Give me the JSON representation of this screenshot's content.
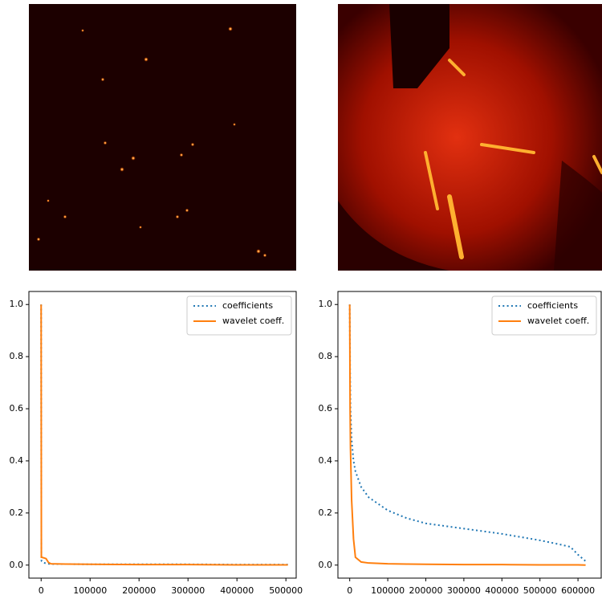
{
  "chart_data": [
    {
      "type": "line",
      "x": [
        0,
        500,
        1000,
        5000,
        10000,
        15000,
        20000,
        50000,
        100000,
        200000,
        300000,
        400000,
        504000
      ],
      "series": [
        {
          "name": "coefficients",
          "color": "#1f77b4",
          "style": "dotted",
          "values": [
            1.0,
            0.02,
            0.015,
            0.01,
            0.006,
            0.005,
            0.004,
            0.004,
            0.003,
            0.003,
            0.003,
            0.002,
            0.002
          ]
        },
        {
          "name": "wavelet coeff.",
          "color": "#ff7f0e",
          "style": "solid",
          "values": [
            1.0,
            0.03,
            0.03,
            0.028,
            0.025,
            0.01,
            0.005,
            0.004,
            0.003,
            0.002,
            0.002,
            0.001,
            0.001
          ]
        }
      ],
      "xlim": [
        -25000,
        521000
      ],
      "ylim": [
        -0.05,
        1.05
      ],
      "xticks": [
        0,
        100000,
        200000,
        300000,
        400000,
        500000
      ],
      "yticks": [
        {
          "value": 0,
          "label": "0.0"
        },
        {
          "value": 0.2,
          "label": "0.2"
        },
        {
          "value": 0.4,
          "label": "0.4"
        },
        {
          "value": 0.6,
          "label": "0.6"
        },
        {
          "value": 0.8,
          "label": "0.8"
        },
        {
          "value": 1,
          "label": "1.0"
        }
      ],
      "legend": "upper right"
    },
    {
      "type": "line",
      "x": [
        0,
        1000,
        2000,
        5000,
        10000,
        15000,
        30000,
        50000,
        100000,
        150000,
        200000,
        300000,
        400000,
        500000,
        550000,
        580000,
        600000,
        620000
      ],
      "series": [
        {
          "name": "coefficients",
          "color": "#1f77b4",
          "style": "dotted",
          "values": [
            1.0,
            0.75,
            0.6,
            0.48,
            0.4,
            0.36,
            0.3,
            0.26,
            0.21,
            0.18,
            0.16,
            0.14,
            0.12,
            0.095,
            0.08,
            0.07,
            0.04,
            0.015
          ]
        },
        {
          "name": "wavelet coeff.",
          "color": "#ff7f0e",
          "style": "solid",
          "values": [
            1.0,
            0.6,
            0.45,
            0.25,
            0.1,
            0.03,
            0.012,
            0.008,
            0.005,
            0.004,
            0.003,
            0.002,
            0.002,
            0.001,
            0.001,
            0.001,
            0.001,
            0.0
          ]
        }
      ],
      "xlim": [
        -31000,
        661000
      ],
      "ylim": [
        -0.05,
        1.05
      ],
      "xticks": [
        0,
        100000,
        200000,
        300000,
        400000,
        500000,
        600000
      ],
      "yticks": [
        {
          "value": 0,
          "label": "0.0"
        },
        {
          "value": 0.2,
          "label": "0.2"
        },
        {
          "value": 0.4,
          "label": "0.4"
        },
        {
          "value": 0.6,
          "label": "0.6"
        },
        {
          "value": 0.8,
          "label": "0.8"
        },
        {
          "value": 1,
          "label": "1.0"
        }
      ],
      "legend": "upper right"
    }
  ]
}
